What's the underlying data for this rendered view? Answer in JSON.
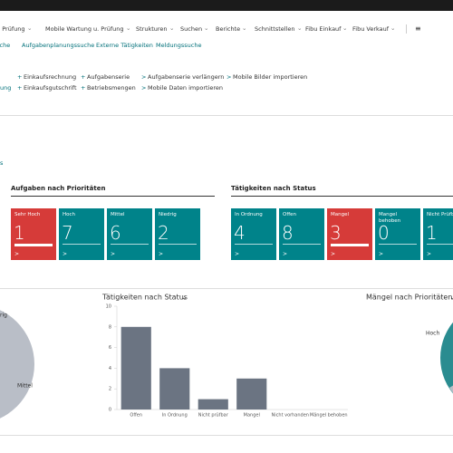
{
  "menu": [
    "u. Prüfung",
    "Mobile Wartung u. Prüfung",
    "Strukturen",
    "Suchen",
    "Berichte",
    "Schnittstellen",
    "Fibu Einkauf",
    "Fibu Verkauf"
  ],
  "links": [
    "suche",
    "Aufgabenplanungssuche",
    "Externe Tätigkeiten",
    "Meldungssuche"
  ],
  "cut_action": "ung",
  "actions": [
    {
      "icon": "+",
      "items": [
        "Einkaufsrechnung",
        "Einkaufsgutschrift"
      ]
    },
    {
      "icon": "+",
      "items": [
        "Aufgabenserie",
        "Betriebsmengen"
      ]
    },
    {
      "icon": ">",
      "items": [
        "Aufgabenserie verlängern",
        "Mobile Daten importieren"
      ]
    },
    {
      "icon": ">",
      "items": [
        "Mobile Bilder importieren"
      ]
    }
  ],
  "section_label": "s",
  "tile_groups": [
    {
      "title": "Aufgaben nach Prioritäten",
      "tiles": [
        {
          "label": "Sehr Hoch",
          "value": "1",
          "color": "#d63b39"
        },
        {
          "label": "Hoch",
          "value": "7",
          "color": "#00838a"
        },
        {
          "label": "Mittel",
          "value": "6",
          "color": "#00838a"
        },
        {
          "label": "Niedrig",
          "value": "2",
          "color": "#00838a"
        }
      ]
    },
    {
      "title": "Tätigkeiten nach Status",
      "tiles": [
        {
          "label": "In Ordnung",
          "value": "4",
          "color": "#00838a"
        },
        {
          "label": "Offen",
          "value": "8",
          "color": "#00838a"
        },
        {
          "label": "Mangel",
          "value": "3",
          "color": "#d63b39"
        },
        {
          "label": "Mangel behoben",
          "value": "0",
          "color": "#00838a"
        },
        {
          "label": "Nicht Prüfb",
          "value": "1",
          "color": "#00838a"
        }
      ]
    }
  ],
  "pie_left_labels": [
    "rig",
    "Mittel"
  ],
  "pie_right": {
    "title": "Mängel nach Prioritäten",
    "labels": [
      "Hoch"
    ]
  },
  "chart_data": {
    "type": "bar",
    "title": "Tätigkeiten nach Status",
    "categories": [
      "Offen",
      "In Ordnung",
      "Nicht prüfbar",
      "Mangel",
      "Nicht vorhanden",
      "Mängel behoben"
    ],
    "values": [
      8,
      4,
      1,
      3,
      0,
      0
    ],
    "color": "#6b7482",
    "ylim": [
      0,
      10
    ],
    "yticks": [
      0,
      2,
      4,
      6,
      8,
      10
    ],
    "grid": false
  }
}
